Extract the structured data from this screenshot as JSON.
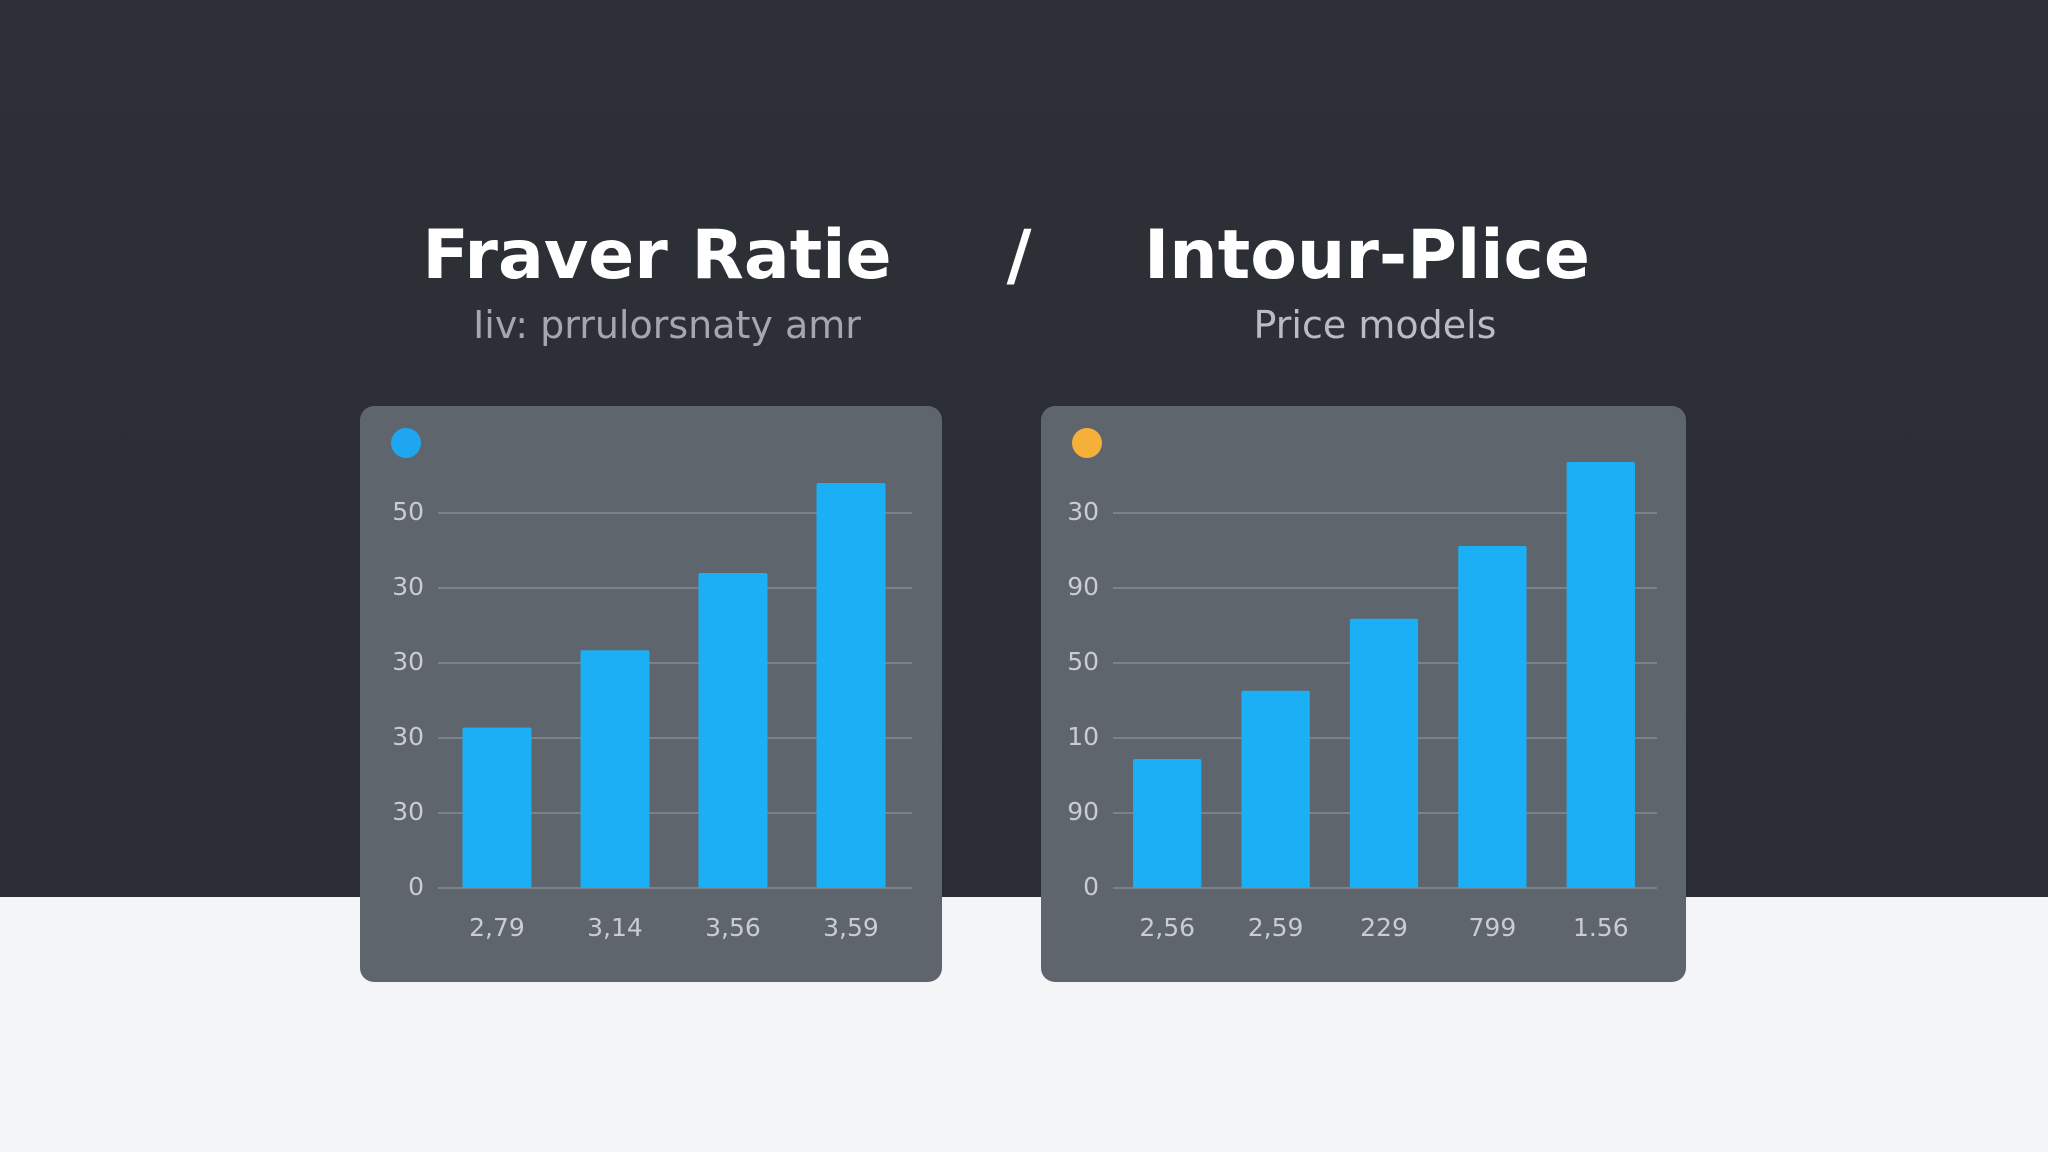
{
  "header": {
    "left_title": "Fraver Ratie",
    "separator": "/",
    "right_title": "Intour-Plice",
    "left_subtitle": "Iiv: prrulorsnaty amr",
    "right_subtitle": "Price models"
  },
  "chart_data": [
    {
      "type": "bar",
      "dot_color": "#1ea7f0",
      "color": "#1bb0f5",
      "categories": [
        "2,79",
        "3,14",
        "3,56",
        "3,59"
      ],
      "values": [
        2.14,
        3.17,
        4.2,
        5.4
      ],
      "ylim": [
        0,
        5.5
      ],
      "yticks": [
        0,
        {
          "value": 1,
          "label": "30"
        },
        {
          "value": 2,
          "label": "30"
        },
        {
          "value": 3,
          "label": "30"
        },
        {
          "value": 4,
          "label": "30"
        },
        {
          "value": 5,
          "label": "50"
        }
      ],
      "grid": true
    },
    {
      "type": "bar",
      "dot_color": "#f5b03a",
      "color": "#1bb0f5",
      "categories": [
        "2,56",
        "2,59",
        "229",
        "799",
        "1.56"
      ],
      "values": [
        1.72,
        2.63,
        3.59,
        4.56,
        5.68
      ],
      "ylim": [
        0,
        5.8
      ],
      "yticks": [
        0,
        {
          "value": 1,
          "label": "90"
        },
        {
          "value": 2,
          "label": "10"
        },
        {
          "value": 3,
          "label": "50"
        },
        {
          "value": 4,
          "label": "90"
        },
        {
          "value": 5,
          "label": "30"
        }
      ],
      "grid": true
    }
  ]
}
